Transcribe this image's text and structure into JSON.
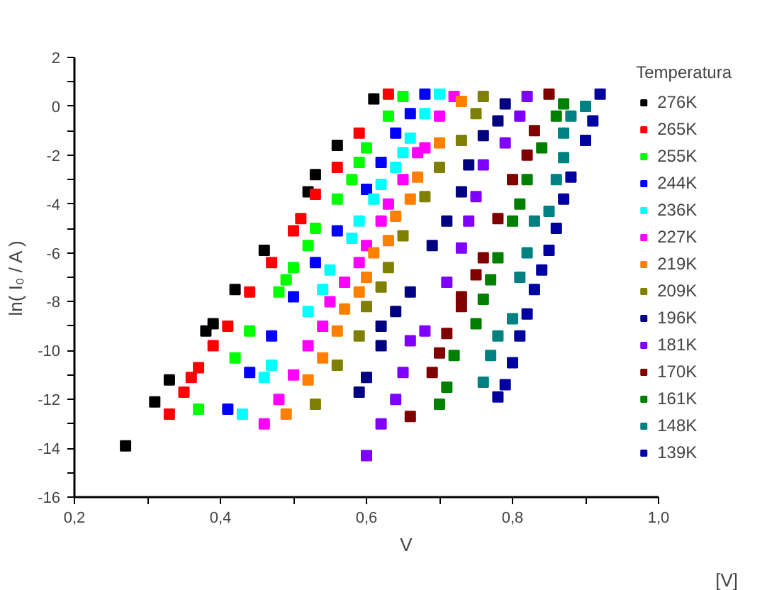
{
  "chart_data": {
    "type": "scatter",
    "xlabel": "V",
    "ylabel": "ln( I₀ / A )",
    "legend_title": "Temperatura",
    "annotations": [
      "[V]"
    ],
    "xlim": [
      0.2,
      1.0
    ],
    "ylim": [
      -16,
      2
    ],
    "xticks": [
      {
        "value": 0.2,
        "label": "0,2"
      },
      {
        "value": 0.3,
        "label": null
      },
      {
        "value": 0.4,
        "label": "0,4"
      },
      {
        "value": 0.5,
        "label": null
      },
      {
        "value": 0.6,
        "label": "0,6"
      },
      {
        "value": 0.7,
        "label": null
      },
      {
        "value": 0.8,
        "label": "0,8"
      },
      {
        "value": 0.9,
        "label": null
      },
      {
        "value": 1.0,
        "label": "1,0"
      }
    ],
    "yticks": [
      -16,
      {
        "value": -15,
        "label": null
      },
      -14,
      {
        "value": -13,
        "label": null
      },
      -12,
      {
        "value": -11,
        "label": null
      },
      -10,
      {
        "value": -9,
        "label": null
      },
      -8,
      {
        "value": -7,
        "label": null
      },
      -6,
      {
        "value": -5,
        "label": null
      },
      -4,
      {
        "value": -3,
        "label": null
      },
      -2,
      {
        "value": -1,
        "label": null
      },
      0,
      {
        "value": 1,
        "label": null
      },
      2
    ],
    "grid": false,
    "legend": "right",
    "marker": "square",
    "series": [
      {
        "name": "276K",
        "color": "#000000",
        "x": [
          0.27,
          0.31,
          0.33,
          0.38,
          0.39,
          0.42,
          0.46,
          0.52,
          0.53,
          0.56,
          0.61
        ],
        "values": [
          -13.9,
          -12.1,
          -11.2,
          -9.2,
          -8.9,
          -7.5,
          -5.9,
          -3.5,
          -2.8,
          -1.6,
          0.3
        ]
      },
      {
        "name": "265K",
        "color": "#ff0000",
        "x": [
          0.33,
          0.35,
          0.36,
          0.37,
          0.39,
          0.41,
          0.44,
          0.47,
          0.5,
          0.51,
          0.53,
          0.56,
          0.59,
          0.63
        ],
        "values": [
          -12.6,
          -11.7,
          -11.1,
          -10.7,
          -9.8,
          -9.0,
          -7.6,
          -6.4,
          -5.1,
          -4.6,
          -3.6,
          -2.5,
          -1.1,
          0.5
        ]
      },
      {
        "name": "255K",
        "color": "#00ff00",
        "x": [
          0.37,
          0.42,
          0.44,
          0.48,
          0.49,
          0.5,
          0.52,
          0.53,
          0.56,
          0.58,
          0.59,
          0.6,
          0.63,
          0.65
        ],
        "values": [
          -12.4,
          -10.3,
          -9.2,
          -7.6,
          -7.1,
          -6.6,
          -5.7,
          -5.0,
          -3.8,
          -3.0,
          -2.3,
          -1.7,
          -0.4,
          0.4
        ]
      },
      {
        "name": "244K",
        "color": "#0000ff",
        "x": [
          0.41,
          0.44,
          0.47,
          0.5,
          0.53,
          0.56,
          0.6,
          0.62,
          0.64,
          0.66,
          0.68
        ],
        "values": [
          -12.4,
          -10.9,
          -9.4,
          -7.8,
          -6.4,
          -5.1,
          -3.4,
          -2.3,
          -1.1,
          -0.3,
          0.5
        ]
      },
      {
        "name": "236K",
        "color": "#00ffff",
        "x": [
          0.43,
          0.46,
          0.47,
          0.52,
          0.54,
          0.55,
          0.58,
          0.59,
          0.61,
          0.62,
          0.64,
          0.65,
          0.66,
          0.68,
          0.7
        ],
        "values": [
          -12.6,
          -11.1,
          -10.6,
          -8.4,
          -7.5,
          -6.7,
          -5.4,
          -4.7,
          -3.8,
          -3.2,
          -2.5,
          -1.9,
          -1.3,
          -0.3,
          0.5
        ]
      },
      {
        "name": "227K",
        "color": "#ff00ff",
        "x": [
          0.46,
          0.48,
          0.5,
          0.52,
          0.54,
          0.55,
          0.57,
          0.59,
          0.6,
          0.62,
          0.63,
          0.65,
          0.67,
          0.68,
          0.7,
          0.72
        ],
        "values": [
          -13.0,
          -12.0,
          -11.0,
          -9.8,
          -9.0,
          -8.0,
          -7.2,
          -6.4,
          -5.7,
          -4.7,
          -4.0,
          -3.0,
          -1.9,
          -1.7,
          -0.4,
          0.4
        ]
      },
      {
        "name": "219K",
        "color": "#ff8000",
        "x": [
          0.49,
          0.52,
          0.54,
          0.56,
          0.57,
          0.59,
          0.6,
          0.61,
          0.63,
          0.64,
          0.66,
          0.67,
          0.7,
          0.73
        ],
        "values": [
          -12.6,
          -11.2,
          -10.3,
          -9.2,
          -8.3,
          -7.6,
          -7.0,
          -6.0,
          -5.5,
          -4.5,
          -3.8,
          -2.9,
          -1.5,
          0.2
        ]
      },
      {
        "name": "209K",
        "color": "#808000",
        "x": [
          0.53,
          0.56,
          0.59,
          0.6,
          0.62,
          0.63,
          0.65,
          0.68,
          0.7,
          0.73,
          0.75,
          0.76
        ],
        "values": [
          -12.2,
          -10.6,
          -9.4,
          -8.2,
          -7.4,
          -6.6,
          -5.3,
          -3.7,
          -2.5,
          -1.4,
          -0.3,
          0.4
        ]
      },
      {
        "name": "196K",
        "color": "#000080",
        "x": [
          0.59,
          0.6,
          0.62,
          0.62,
          0.64,
          0.66,
          0.69,
          0.71,
          0.73,
          0.74,
          0.76,
          0.78,
          0.79
        ],
        "values": [
          -11.7,
          -11.1,
          -9.8,
          -9.0,
          -8.4,
          -7.6,
          -5.7,
          -4.7,
          -3.5,
          -2.4,
          -1.2,
          -0.6,
          0.1
        ]
      },
      {
        "name": "181K",
        "color": "#8000ff",
        "x": [
          0.6,
          0.62,
          0.64,
          0.65,
          0.66,
          0.68,
          0.71,
          0.73,
          0.74,
          0.75,
          0.76,
          0.79,
          0.81,
          0.82
        ],
        "values": [
          -14.3,
          -13.0,
          -12.0,
          -10.9,
          -9.6,
          -9.2,
          -7.2,
          -5.8,
          -4.7,
          -3.7,
          -2.4,
          -1.5,
          -0.4,
          0.4
        ]
      },
      {
        "name": "170K",
        "color": "#800000",
        "x": [
          0.66,
          0.69,
          0.7,
          0.71,
          0.73,
          0.73,
          0.75,
          0.76,
          0.78,
          0.8,
          0.82,
          0.83,
          0.85
        ],
        "values": [
          -12.7,
          -10.9,
          -10.1,
          -9.3,
          -8.2,
          -7.8,
          -6.9,
          -6.2,
          -4.6,
          -3.0,
          -2.0,
          -1.0,
          0.5
        ]
      },
      {
        "name": "161K",
        "color": "#008000",
        "x": [
          0.7,
          0.71,
          0.72,
          0.75,
          0.76,
          0.77,
          0.78,
          0.8,
          0.81,
          0.82,
          0.84,
          0.86,
          0.87
        ],
        "values": [
          -12.2,
          -11.5,
          -10.2,
          -8.9,
          -7.9,
          -7.1,
          -6.2,
          -4.7,
          -4.0,
          -3.0,
          -1.7,
          -0.4,
          0.1
        ]
      },
      {
        "name": "148K",
        "color": "#008080",
        "x": [
          0.76,
          0.77,
          0.78,
          0.8,
          0.81,
          0.82,
          0.83,
          0.85,
          0.86,
          0.87,
          0.87,
          0.88,
          0.9
        ],
        "values": [
          -11.3,
          -10.2,
          -9.4,
          -8.7,
          -7.0,
          -6.0,
          -4.7,
          -4.3,
          -3.0,
          -2.1,
          -1.1,
          -0.4,
          0.0
        ]
      },
      {
        "name": "139K",
        "color": "#0000a0",
        "x": [
          0.78,
          0.79,
          0.8,
          0.81,
          0.82,
          0.83,
          0.84,
          0.85,
          0.86,
          0.87,
          0.88,
          0.9,
          0.91,
          0.92
        ],
        "values": [
          -11.9,
          -11.4,
          -10.5,
          -9.4,
          -8.5,
          -7.5,
          -6.7,
          -5.9,
          -5.0,
          -3.8,
          -2.9,
          -1.4,
          -0.6,
          0.5
        ]
      }
    ]
  }
}
